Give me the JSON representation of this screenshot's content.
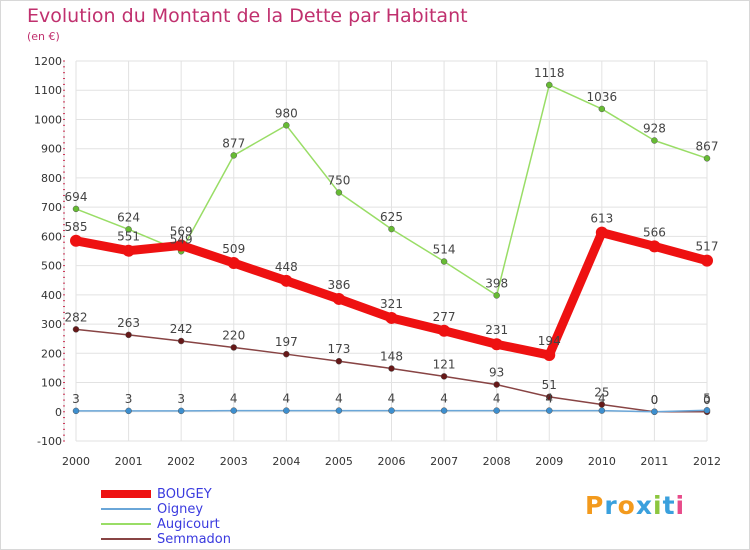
{
  "title": "Evolution du Montant de la Dette par Habitant",
  "subtitle": "(en €)",
  "logo": "Proxiti",
  "chart_data": {
    "type": "line",
    "x": [
      "2000",
      "2001",
      "2002",
      "2003",
      "2004",
      "2005",
      "2006",
      "2007",
      "2008",
      "2009",
      "2010",
      "2011",
      "2012"
    ],
    "ylim": [
      -100,
      1200
    ],
    "yticks": [
      -100,
      0,
      100,
      200,
      300,
      400,
      500,
      600,
      700,
      800,
      900,
      1000,
      1100,
      1200
    ],
    "grid": true,
    "legend_position": "bottom-left",
    "series": [
      {
        "name": "BOUGEY",
        "color": "#ee1111",
        "point_color": "#ee1111",
        "width": 9,
        "values": [
          585,
          551,
          569,
          509,
          448,
          386,
          321,
          277,
          231,
          194,
          613,
          566,
          517
        ],
        "labels": [
          "585",
          "551",
          "569",
          "509",
          "448",
          "386",
          "321",
          "277",
          "231",
          "194",
          "613",
          "566",
          "517"
        ]
      },
      {
        "name": "Oigney",
        "color": "#6aa6d8",
        "point_color": "#3d8fcf",
        "width": 1.5,
        "values": [
          3,
          3,
          3,
          4,
          4,
          4,
          4,
          4,
          4,
          4,
          4,
          0,
          5
        ],
        "labels": [
          "3",
          "3",
          "3",
          "4",
          "4",
          "4",
          "4",
          "4",
          "4",
          "4",
          "4",
          "0",
          "5"
        ]
      },
      {
        "name": "Augicourt",
        "color": "#99dd66",
        "point_color": "#66bb33",
        "width": 1.5,
        "values": [
          694,
          624,
          549,
          877,
          980,
          750,
          625,
          514,
          398,
          1118,
          1036,
          928,
          867
        ],
        "labels": [
          "694",
          "624",
          "549",
          "877",
          "980",
          "750",
          "625",
          "514",
          "398",
          "1118",
          "1036",
          "928",
          "867"
        ]
      },
      {
        "name": "Semmadon",
        "color": "#884444",
        "point_color": "#661818",
        "width": 1.5,
        "values": [
          282,
          263,
          242,
          220,
          197,
          173,
          148,
          121,
          93,
          51,
          25,
          0,
          0
        ],
        "labels": [
          "282",
          "263",
          "242",
          "220",
          "197",
          "173",
          "148",
          "121",
          "93",
          "51",
          "25",
          "0",
          "0"
        ]
      }
    ]
  }
}
